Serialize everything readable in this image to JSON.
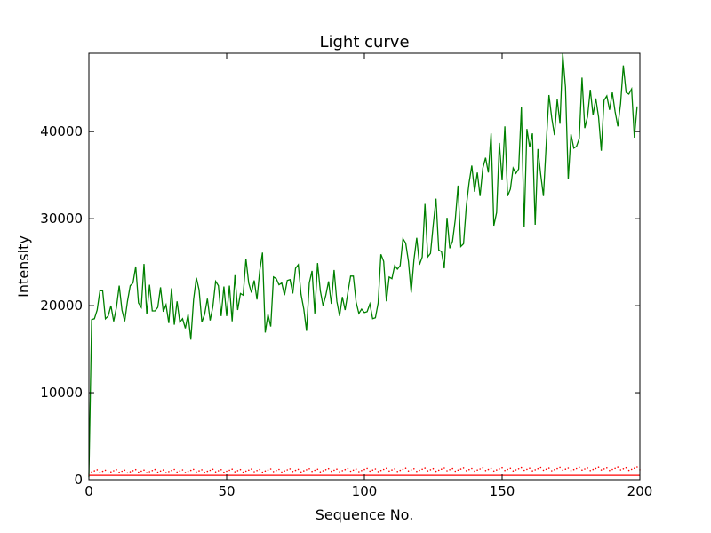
{
  "chart_data": {
    "type": "line",
    "title": "Light curve",
    "xlabel": "Sequence No.",
    "ylabel": "Intensity",
    "xlim": [
      0,
      200
    ],
    "ylim": [
      0,
      49000
    ],
    "xticks": [
      0,
      50,
      100,
      150,
      200
    ],
    "yticks": [
      0,
      10000,
      20000,
      30000,
      40000
    ],
    "grid": false,
    "legend": "none",
    "series": [
      {
        "color": "#008000",
        "style": "solid",
        "x": [
          0,
          1,
          2,
          3,
          4,
          5,
          6,
          7,
          8,
          9,
          10,
          11,
          12,
          13,
          14,
          15,
          16,
          17,
          18,
          19,
          20,
          21,
          22,
          23,
          24,
          25,
          26,
          27,
          28,
          29,
          30,
          31,
          32,
          33,
          34,
          35,
          36,
          37,
          38,
          39,
          40,
          41,
          42,
          43,
          44,
          45,
          46,
          47,
          48,
          49,
          50,
          51,
          52,
          53,
          54,
          55,
          56,
          57,
          58,
          59,
          60,
          61,
          62,
          63,
          64,
          65,
          66,
          67,
          68,
          69,
          70,
          71,
          72,
          73,
          74,
          75,
          76,
          77,
          78,
          79,
          80,
          81,
          82,
          83,
          84,
          85,
          86,
          87,
          88,
          89,
          90,
          91,
          92,
          93,
          94,
          95,
          96,
          97,
          98,
          99,
          100,
          101,
          102,
          103,
          104,
          105,
          106,
          107,
          108,
          109,
          110,
          111,
          112,
          113,
          114,
          115,
          116,
          117,
          118,
          119,
          120,
          121,
          122,
          123,
          124,
          125,
          126,
          127,
          128,
          129,
          130,
          131,
          132,
          133,
          134,
          135,
          136,
          137,
          138,
          139,
          140,
          141,
          142,
          143,
          144,
          145,
          146,
          147,
          148,
          149,
          150,
          151,
          152,
          153,
          154,
          155,
          156,
          157,
          158,
          159,
          160,
          161,
          162,
          163,
          164,
          165,
          166,
          167,
          168,
          169,
          170,
          171,
          172,
          173,
          174,
          175,
          176,
          177,
          178,
          179,
          180,
          181,
          182,
          183,
          184,
          185,
          186,
          187,
          188,
          189,
          190,
          191,
          192,
          193,
          194,
          195,
          196,
          197,
          198,
          199
        ],
        "y": [
          300,
          18400,
          18500,
          19500,
          21700,
          21700,
          18500,
          18800,
          20000,
          18200,
          19800,
          22300,
          19500,
          18200,
          20500,
          22300,
          22600,
          24500,
          20300,
          19800,
          24800,
          19000,
          22400,
          19400,
          19400,
          19800,
          22100,
          19300,
          20100,
          18000,
          22000,
          17800,
          20500,
          18100,
          18500,
          17400,
          19000,
          16100,
          20700,
          23200,
          21800,
          18100,
          19000,
          20800,
          18300,
          19900,
          22800,
          22300,
          18800,
          22200,
          18800,
          22300,
          18200,
          23500,
          19500,
          21400,
          21200,
          25400,
          22600,
          21500,
          22900,
          20700,
          24000,
          26100,
          16900,
          19000,
          17600,
          23300,
          23100,
          22400,
          22600,
          21200,
          22900,
          23000,
          21400,
          24300,
          24700,
          21300,
          19600,
          17100,
          22600,
          24000,
          19100,
          24900,
          21700,
          20000,
          21200,
          22800,
          20200,
          24100,
          20500,
          18800,
          21000,
          19500,
          21500,
          23400,
          23400,
          20400,
          19100,
          19600,
          19200,
          19300,
          20200,
          18500,
          18600,
          20300,
          25900,
          25100,
          20500,
          23300,
          23100,
          24600,
          24200,
          24600,
          27700,
          27200,
          25100,
          21500,
          25300,
          27800,
          24700,
          25600,
          31700,
          25600,
          26000,
          29300,
          32300,
          26400,
          26200,
          24300,
          30100,
          26600,
          27400,
          29900,
          33800,
          26800,
          27100,
          31400,
          34100,
          36100,
          33100,
          35300,
          32600,
          35800,
          37000,
          35300,
          39800,
          29200,
          30700,
          38700,
          34400,
          40600,
          32600,
          33400,
          35800,
          35200,
          35700,
          42800,
          29000,
          40300,
          38200,
          39800,
          29300,
          38000,
          35100,
          32600,
          38500,
          44200,
          41600,
          39600,
          43700,
          40900,
          49000,
          45100,
          34500,
          39700,
          38100,
          38300,
          39200,
          46200,
          40400,
          41700,
          44800,
          41900,
          43800,
          41700,
          37800,
          43600,
          44100,
          42500,
          44500,
          42300,
          40600,
          43200,
          47600,
          44500,
          44300,
          44900,
          39300,
          42900
        ]
      },
      {
        "color": "#ff0000",
        "style": "solid",
        "x": [
          0,
          200
        ],
        "y": [
          500,
          500
        ]
      },
      {
        "color": "#ff0000",
        "style": "dotted",
        "x": [
          0,
          200
        ],
        "y": [
          950,
          1250
        ]
      }
    ]
  }
}
